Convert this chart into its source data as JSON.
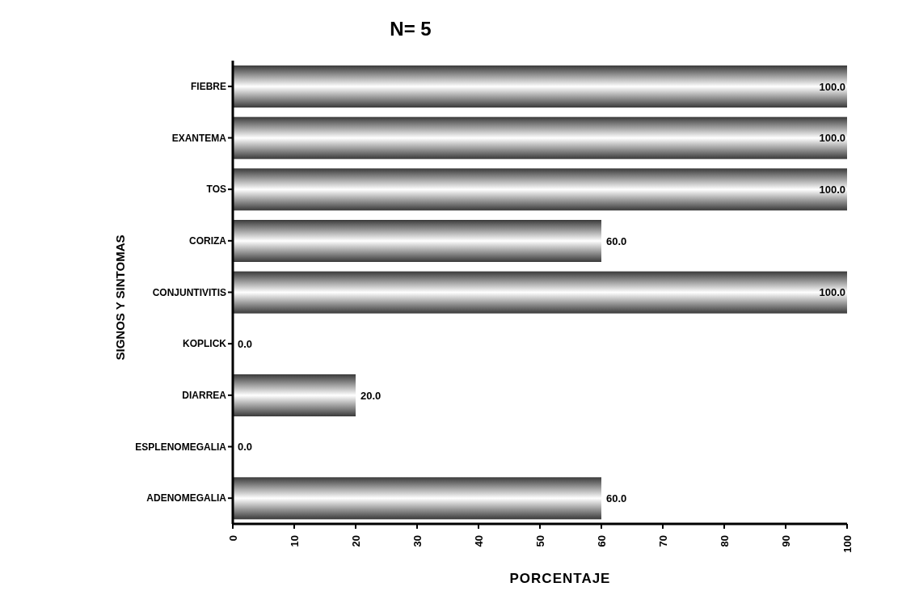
{
  "chart_data": {
    "type": "bar",
    "orientation": "horizontal",
    "title": "N= 5",
    "xlabel": "PORCENTAJE",
    "ylabel": "SIGNOS Y SINTOMAS",
    "categories": [
      "FIEBRE",
      "EXANTEMA",
      "TOS",
      "CORIZA",
      "CONJUNTIVITIS",
      "KOPLICK",
      "DIARREA",
      "ESPLENOMEGALIA",
      "ADENOMEGALIA"
    ],
    "values": [
      100,
      100,
      100,
      60,
      100,
      0,
      20,
      0,
      60
    ],
    "value_labels": [
      "100.0",
      "100.0",
      "100.0",
      "60.0",
      "100.0",
      "0.0",
      "20.0",
      "0.0",
      "60.0"
    ],
    "color": "#3a3a3a",
    "xlim": [
      0,
      100
    ],
    "xticks": [
      0,
      10,
      20,
      30,
      40,
      50,
      60,
      70,
      80,
      90,
      100
    ],
    "grid": false,
    "legend": false
  }
}
